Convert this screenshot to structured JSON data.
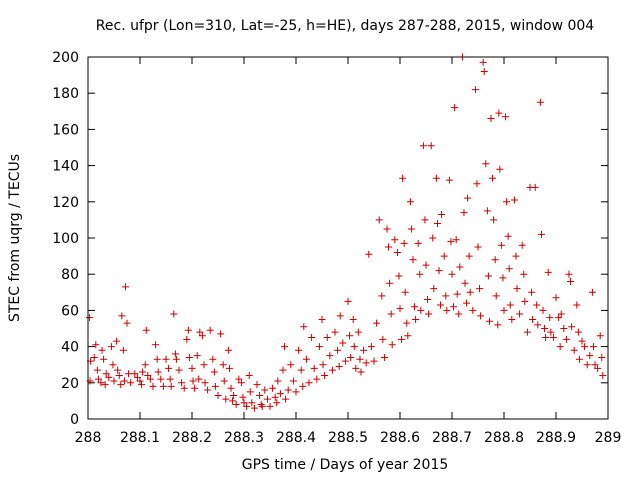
{
  "chart_data": {
    "type": "scatter",
    "title": "Rec. ufpr (Lon=310, Lat=-25, h=HE), days 287-288, 2015, window 004",
    "xlabel": "GPS time / Days of year 2015",
    "ylabel": "STEC from uqrg / TECUs",
    "xlim": [
      288,
      289
    ],
    "ylim": [
      0,
      200
    ],
    "xticks": [
      "288",
      "288.1",
      "288.2",
      "288.3",
      "288.4",
      "288.5",
      "288.6",
      "288.7",
      "288.8",
      "288.9",
      "289"
    ],
    "yticks": [
      "0",
      "20",
      "40",
      "60",
      "80",
      "100",
      "120",
      "140",
      "160",
      "180",
      "200"
    ],
    "grid": false,
    "legend": "none",
    "marker": "plus",
    "series": [
      {
        "name": "STEC",
        "color": "#cc0000",
        "points": [
          [
            288.003,
            56
          ],
          [
            288.005,
            32
          ],
          [
            288.004,
            21
          ],
          [
            288.012,
            34
          ],
          [
            288.015,
            41
          ],
          [
            288.018,
            27
          ],
          [
            288.02,
            22
          ],
          [
            288.025,
            20
          ],
          [
            288.027,
            38
          ],
          [
            288.03,
            33
          ],
          [
            288.033,
            19
          ],
          [
            288.035,
            25
          ],
          [
            288.04,
            23
          ],
          [
            288.045,
            40
          ],
          [
            288.048,
            30
          ],
          [
            288.05,
            21
          ],
          [
            288.055,
            43
          ],
          [
            288.057,
            27
          ],
          [
            288.06,
            24
          ],
          [
            288.063,
            19
          ],
          [
            288.065,
            57
          ],
          [
            288.068,
            38
          ],
          [
            288.07,
            21
          ],
          [
            288.072,
            73
          ],
          [
            288.075,
            53
          ],
          [
            288.078,
            25
          ],
          [
            288.082,
            20
          ],
          [
            288.09,
            25
          ],
          [
            288.095,
            23
          ],
          [
            288.1,
            21
          ],
          [
            288.103,
            19
          ],
          [
            288.105,
            26
          ],
          [
            288.11,
            30
          ],
          [
            288.112,
            49
          ],
          [
            288.115,
            24
          ],
          [
            288.12,
            22
          ],
          [
            288.125,
            18
          ],
          [
            288.13,
            41
          ],
          [
            288.133,
            33
          ],
          [
            288.135,
            26
          ],
          [
            288.14,
            22
          ],
          [
            288.145,
            18
          ],
          [
            288.15,
            33
          ],
          [
            288.155,
            28
          ],
          [
            288.158,
            22
          ],
          [
            288.16,
            18
          ],
          [
            288.165,
            58
          ],
          [
            288.168,
            36
          ],
          [
            288.17,
            33
          ],
          [
            288.175,
            27
          ],
          [
            288.18,
            20
          ],
          [
            288.185,
            17
          ],
          [
            288.19,
            44
          ],
          [
            288.193,
            49
          ],
          [
            288.195,
            34
          ],
          [
            288.2,
            28
          ],
          [
            288.202,
            21
          ],
          [
            288.205,
            17
          ],
          [
            288.21,
            35
          ],
          [
            288.213,
            22
          ],
          [
            288.215,
            48
          ],
          [
            288.22,
            46
          ],
          [
            288.223,
            30
          ],
          [
            288.225,
            20
          ],
          [
            288.23,
            16
          ],
          [
            288.235,
            49
          ],
          [
            288.24,
            33
          ],
          [
            288.243,
            26
          ],
          [
            288.245,
            18
          ],
          [
            288.25,
            13
          ],
          [
            288.255,
            47
          ],
          [
            288.26,
            30
          ],
          [
            288.262,
            21
          ],
          [
            288.265,
            11
          ],
          [
            288.27,
            38
          ],
          [
            288.272,
            28
          ],
          [
            288.275,
            17
          ],
          [
            288.278,
            10
          ],
          [
            288.28,
            13
          ],
          [
            288.285,
            8
          ],
          [
            288.29,
            22
          ],
          [
            288.295,
            20
          ],
          [
            288.298,
            12
          ],
          [
            288.3,
            9
          ],
          [
            288.305,
            7
          ],
          [
            288.31,
            24
          ],
          [
            288.312,
            15
          ],
          [
            288.315,
            9
          ],
          [
            288.32,
            6
          ],
          [
            288.325,
            19
          ],
          [
            288.33,
            13
          ],
          [
            288.333,
            8
          ],
          [
            288.335,
            7
          ],
          [
            288.34,
            16
          ],
          [
            288.345,
            11
          ],
          [
            288.35,
            7
          ],
          [
            288.355,
            17
          ],
          [
            288.36,
            12
          ],
          [
            288.363,
            9
          ],
          [
            288.365,
            21
          ],
          [
            288.37,
            14
          ],
          [
            288.375,
            27
          ],
          [
            288.378,
            40
          ],
          [
            288.38,
            11
          ],
          [
            288.385,
            16
          ],
          [
            288.39,
            30
          ],
          [
            288.395,
            21
          ],
          [
            288.4,
            15
          ],
          [
            288.405,
            38
          ],
          [
            288.41,
            27
          ],
          [
            288.413,
            18
          ],
          [
            288.415,
            51
          ],
          [
            288.42,
            33
          ],
          [
            288.425,
            20
          ],
          [
            288.43,
            45
          ],
          [
            288.435,
            28
          ],
          [
            288.44,
            22
          ],
          [
            288.445,
            40
          ],
          [
            288.45,
            55
          ],
          [
            288.452,
            30
          ],
          [
            288.455,
            24
          ],
          [
            288.46,
            45
          ],
          [
            288.465,
            35
          ],
          [
            288.47,
            27
          ],
          [
            288.475,
            48
          ],
          [
            288.48,
            38
          ],
          [
            288.483,
            29
          ],
          [
            288.485,
            57
          ],
          [
            288.49,
            42
          ],
          [
            288.495,
            32
          ],
          [
            288.5,
            65
          ],
          [
            288.503,
            46
          ],
          [
            288.505,
            34
          ],
          [
            288.51,
            55
          ],
          [
            288.512,
            40
          ],
          [
            288.515,
            28
          ],
          [
            288.52,
            48
          ],
          [
            288.523,
            33
          ],
          [
            288.525,
            26
          ],
          [
            288.53,
            38
          ],
          [
            288.535,
            31
          ],
          [
            288.54,
            91
          ],
          [
            288.545,
            40
          ],
          [
            288.55,
            32
          ],
          [
            288.555,
            53
          ],
          [
            288.56,
            110
          ],
          [
            288.565,
            68
          ],
          [
            288.567,
            44
          ],
          [
            288.57,
            34
          ],
          [
            288.575,
            105
          ],
          [
            288.578,
            95
          ],
          [
            288.58,
            75
          ],
          [
            288.583,
            58
          ],
          [
            288.585,
            41
          ],
          [
            288.59,
            99
          ],
          [
            288.595,
            92
          ],
          [
            288.598,
            79
          ],
          [
            288.6,
            61
          ],
          [
            288.603,
            44
          ],
          [
            288.605,
            133
          ],
          [
            288.608,
            97
          ],
          [
            288.61,
            70
          ],
          [
            288.613,
            53
          ],
          [
            288.615,
            46
          ],
          [
            288.62,
            120
          ],
          [
            288.622,
            105
          ],
          [
            288.625,
            88
          ],
          [
            288.628,
            62
          ],
          [
            288.63,
            55
          ],
          [
            288.635,
            97
          ],
          [
            288.638,
            80
          ],
          [
            288.64,
            60
          ],
          [
            288.645,
            151
          ],
          [
            288.648,
            110
          ],
          [
            288.65,
            85
          ],
          [
            288.653,
            66
          ],
          [
            288.655,
            58
          ],
          [
            288.66,
            151
          ],
          [
            288.663,
            100
          ],
          [
            288.665,
            72
          ],
          [
            288.67,
            133
          ],
          [
            288.672,
            108
          ],
          [
            288.675,
            82
          ],
          [
            288.678,
            63
          ],
          [
            288.68,
            113
          ],
          [
            288.685,
            90
          ],
          [
            288.688,
            68
          ],
          [
            288.69,
            60
          ],
          [
            288.695,
            132
          ],
          [
            288.698,
            98
          ],
          [
            288.7,
            80
          ],
          [
            288.703,
            62
          ],
          [
            288.705,
            172
          ],
          [
            288.708,
            99
          ],
          [
            288.71,
            69
          ],
          [
            288.713,
            58
          ],
          [
            288.715,
            84
          ],
          [
            288.72,
            200
          ],
          [
            288.723,
            114
          ],
          [
            288.725,
            75
          ],
          [
            288.728,
            64
          ],
          [
            288.73,
            122
          ],
          [
            288.733,
            90
          ],
          [
            288.735,
            70
          ],
          [
            288.74,
            60
          ],
          [
            288.745,
            182
          ],
          [
            288.748,
            130
          ],
          [
            288.75,
            95
          ],
          [
            288.753,
            72
          ],
          [
            288.755,
            57
          ],
          [
            288.76,
            197
          ],
          [
            288.762,
            192
          ],
          [
            288.765,
            141
          ],
          [
            288.768,
            115
          ],
          [
            288.77,
            79
          ],
          [
            288.772,
            54
          ],
          [
            288.775,
            166
          ],
          [
            288.778,
            133
          ],
          [
            288.78,
            110
          ],
          [
            288.783,
            88
          ],
          [
            288.785,
            68
          ],
          [
            288.788,
            52
          ],
          [
            288.79,
            169
          ],
          [
            288.792,
            138
          ],
          [
            288.795,
            96
          ],
          [
            288.798,
            78
          ],
          [
            288.8,
            60
          ],
          [
            288.803,
            167
          ],
          [
            288.805,
            120
          ],
          [
            288.808,
            101
          ],
          [
            288.81,
            83
          ],
          [
            288.812,
            63
          ],
          [
            288.815,
            55
          ],
          [
            288.82,
            121
          ],
          [
            288.823,
            90
          ],
          [
            288.825,
            72
          ],
          [
            288.83,
            58
          ],
          [
            288.835,
            96
          ],
          [
            288.838,
            80
          ],
          [
            288.84,
            65
          ],
          [
            288.845,
            48
          ],
          [
            288.85,
            128
          ],
          [
            288.853,
            70
          ],
          [
            288.855,
            55
          ],
          [
            288.86,
            128
          ],
          [
            288.863,
            63
          ],
          [
            288.865,
            52
          ],
          [
            288.87,
            175
          ],
          [
            288.872,
            102
          ],
          [
            288.875,
            60
          ],
          [
            288.878,
            50
          ],
          [
            288.88,
            45
          ],
          [
            288.885,
            81
          ],
          [
            288.888,
            56
          ],
          [
            288.89,
            48
          ],
          [
            288.895,
            45
          ],
          [
            288.9,
            67
          ],
          [
            288.905,
            56
          ],
          [
            288.908,
            40
          ],
          [
            288.91,
            58
          ],
          [
            288.915,
            50
          ],
          [
            288.92,
            44
          ],
          [
            288.925,
            80
          ],
          [
            288.928,
            76
          ],
          [
            288.93,
            51
          ],
          [
            288.935,
            38
          ],
          [
            288.94,
            63
          ],
          [
            288.943,
            48
          ],
          [
            288.945,
            33
          ],
          [
            288.95,
            43
          ],
          [
            288.955,
            40
          ],
          [
            288.96,
            30
          ],
          [
            288.965,
            35
          ],
          [
            288.97,
            70
          ],
          [
            288.972,
            40
          ],
          [
            288.975,
            30
          ],
          [
            288.98,
            28
          ],
          [
            288.985,
            46
          ],
          [
            288.988,
            34
          ],
          [
            288.99,
            24
          ]
        ]
      }
    ]
  }
}
